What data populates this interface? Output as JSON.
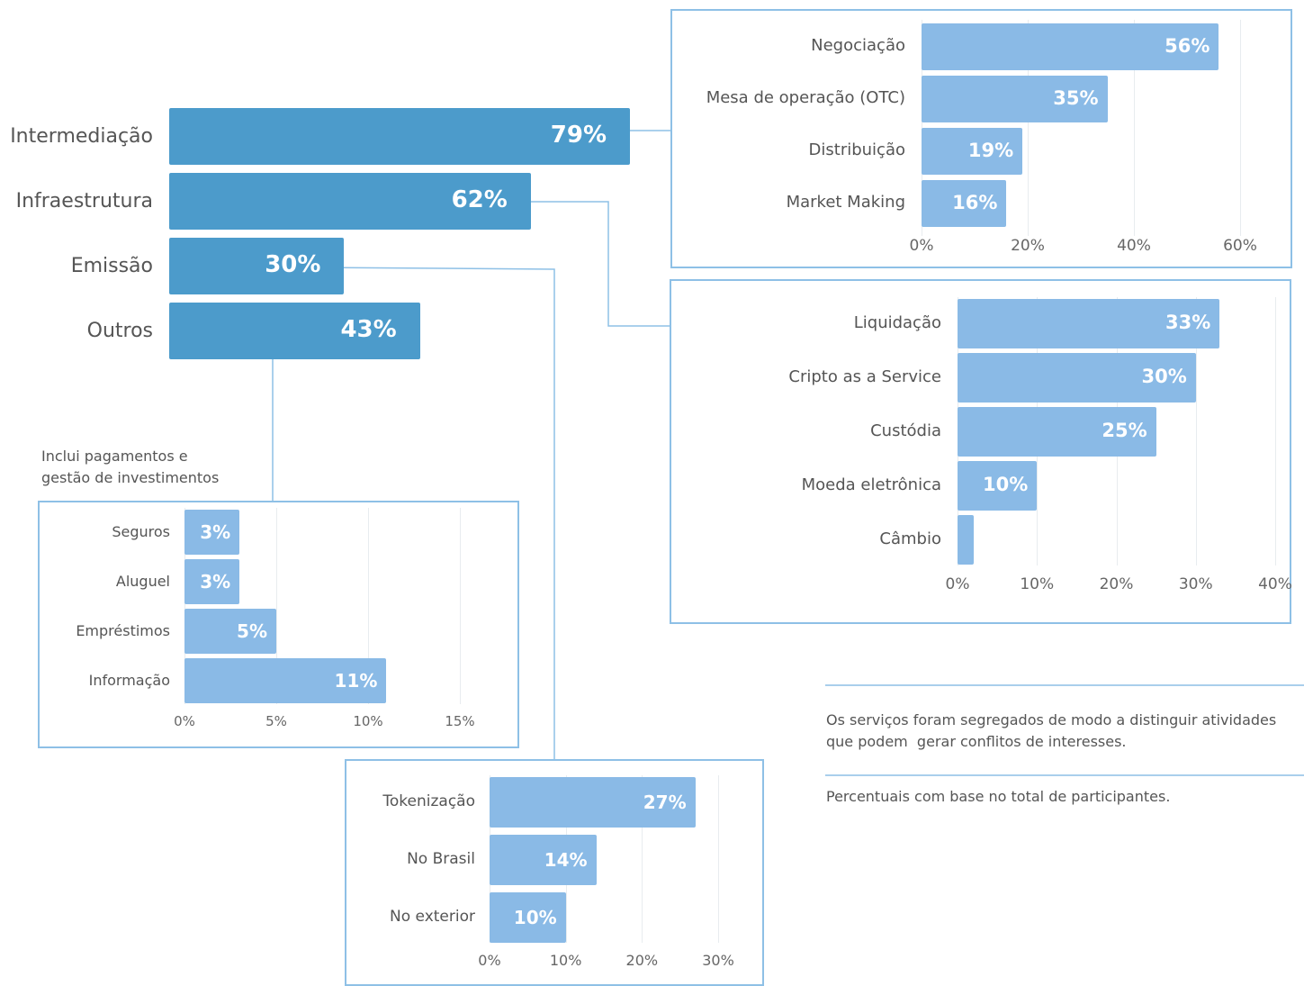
{
  "main_chart": {
    "type": "bar",
    "categories": [
      "Intermediação",
      "Infraestrutura",
      "Emissão",
      "Outros"
    ],
    "values": [
      79,
      62,
      30,
      43
    ],
    "value_labels": [
      "79%",
      "62%",
      "30%",
      "43%"
    ],
    "color": "#4c9bcb"
  },
  "chart_data": [
    {
      "type": "bar",
      "categories": [
        "Intermediação",
        "Infraestrutura",
        "Emissão",
        "Outros"
      ],
      "values": [
        79,
        62,
        30,
        43
      ]
    },
    {
      "type": "bar",
      "parent": "Intermediação",
      "categories": [
        "Negociação",
        "Mesa de operação (OTC)",
        "Distribuição",
        "Market Making"
      ],
      "values": [
        56,
        35,
        19,
        16
      ],
      "value_labels": [
        "56%",
        "35%",
        "19%",
        "16%"
      ],
      "xlim": [
        0,
        60
      ],
      "ticks": [
        "0%",
        "20%",
        "40%",
        "60%"
      ]
    },
    {
      "type": "bar",
      "parent": "Infraestrutura",
      "categories": [
        "Liquidação",
        "Cripto as a Service",
        "Custódia",
        "Moeda eletrônica",
        "Câmbio"
      ],
      "values": [
        33,
        30,
        25,
        10,
        2
      ],
      "value_labels": [
        "33%",
        "30%",
        "25%",
        "10%",
        ""
      ],
      "xlim": [
        0,
        40
      ],
      "ticks": [
        "0%",
        "10%",
        "20%",
        "30%",
        "40%"
      ]
    },
    {
      "type": "bar",
      "parent": "Outros",
      "categories": [
        "Seguros",
        "Aluguel",
        "Empréstimos",
        "Informação"
      ],
      "values": [
        3,
        3,
        5,
        11
      ],
      "value_labels": [
        "3%",
        "3%",
        "5%",
        "11%"
      ],
      "xlim": [
        0,
        15
      ],
      "ticks": [
        "0%",
        "5%",
        "10%",
        "15%"
      ]
    },
    {
      "type": "bar",
      "parent": "Emissão",
      "categories": [
        "Tokenização",
        "No Brasil",
        "No exterior"
      ],
      "values": [
        27,
        14,
        10
      ],
      "value_labels": [
        "27%",
        "14%",
        "10%"
      ],
      "xlim": [
        0,
        30
      ],
      "ticks": [
        "0%",
        "10%",
        "20%",
        "30%"
      ]
    }
  ],
  "outros_note": [
    "Inclui pagamentos e",
    "gestão de investimentos"
  ],
  "notes": {
    "note1": [
      "Os serviços foram segregados de modo a distinguir atividades",
      "que podem  gerar conflitos de interesses."
    ],
    "note2": "Percentuais com base no total de participantes."
  },
  "colors": {
    "main_bar": "#4c9bcb",
    "sub_bar": "#8abae6",
    "panel_border": "#8ec0e6",
    "connector": "#8ec0e6"
  }
}
